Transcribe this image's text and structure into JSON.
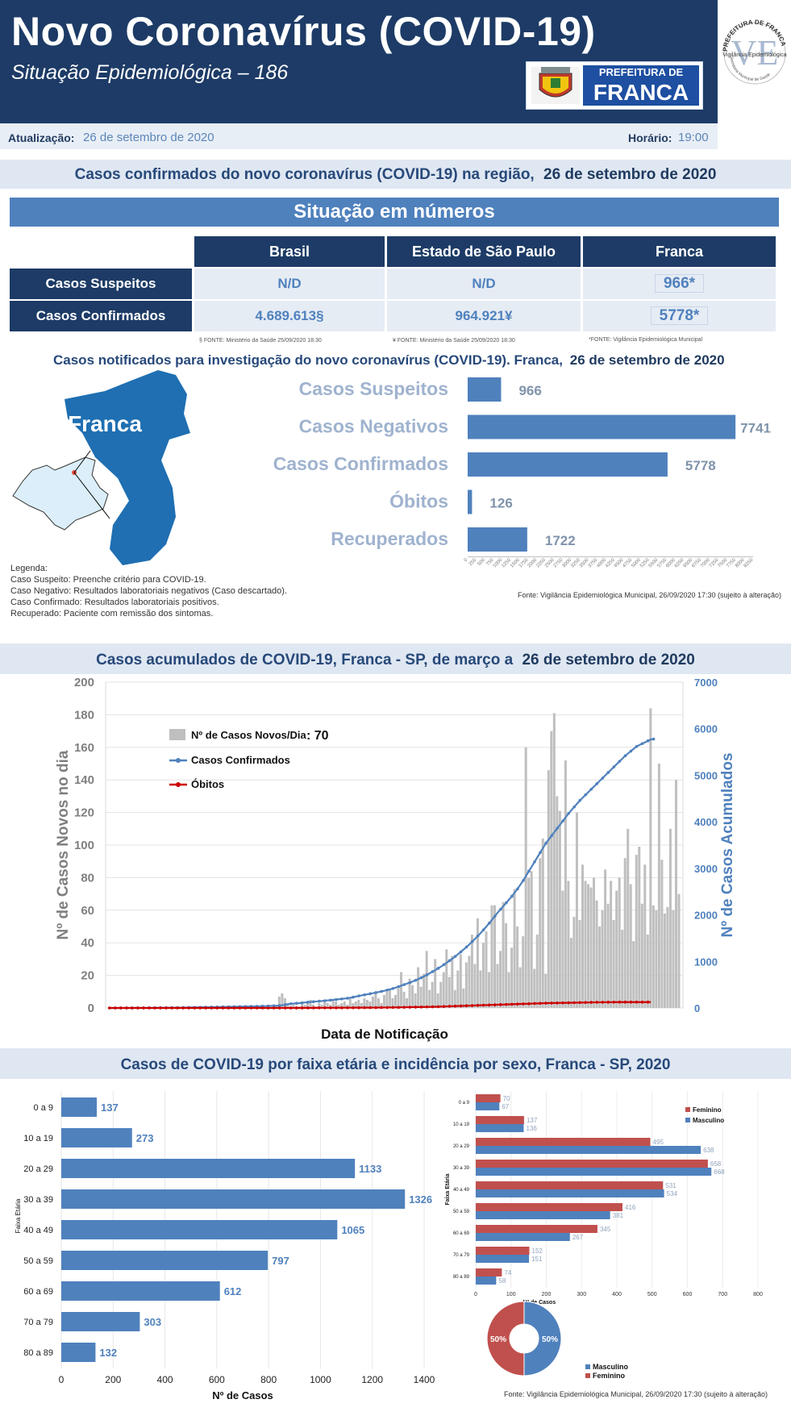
{
  "header": {
    "title": "Novo Coronavírus (COVID-19)",
    "subtitle": "Situação Epidemiológica – 186",
    "prefeitura_line1": "PREFEITURA DE",
    "prefeitura_line2": "FRANCA",
    "seal_text_top": "PREFEITURA DE FRANCA",
    "seal_text_mid": "Vigilância Epidemiológica",
    "seal_text_bottom": "Secretaria Municipal de Saúde",
    "seal_letters": "VE"
  },
  "update": {
    "date_label": "Atualização:",
    "date_value": "26 de setembro de 2020",
    "time_label": "Horário:",
    "time_value": "19:00"
  },
  "region_title": {
    "text": "Casos confirmados do novo coronavírus (COVID-19) na região,",
    "date": "26 de setembro de 2020"
  },
  "situation": {
    "title": "Situação em números",
    "columns": [
      "Brasil",
      "Estado de São Paulo",
      "Franca"
    ],
    "rows": [
      {
        "label": "Casos Suspeitos",
        "values": [
          "N/D",
          "N/D",
          "966*"
        ]
      },
      {
        "label": "Casos Confirmados",
        "values": [
          "4.689.613§",
          "964.921¥",
          "5778*"
        ]
      }
    ],
    "footnotes": [
      "§ FONTE: Ministério da Saúde 25/09/2020 18:30",
      "¥ FONTE: Ministério da Saúde 25/09/2020 18:30",
      "*FONTE: Vigilância Epidemiológica Municipal"
    ]
  },
  "notified": {
    "title": "Casos notificados para investigação do novo coronavírus (COVID-19). Franca,",
    "date": "26 de setembro de 2020",
    "map_label": "Franca",
    "legend_title": "Legenda:",
    "legend": [
      "Caso Suspeito: Preenche critério para COVID-19.",
      "Caso Negativo: Resultados laboratoriais negativos (Caso descartado).",
      "Caso Confirmado: Resultados laboratoriais positivos.",
      "Recuperado: Paciente com remissão dos sintomas."
    ],
    "source": "Fonte: Vigilância Epidemiológica Municipal, 26/09/2020 17:30  (sujeito à alteração)"
  },
  "accum_title": {
    "text": "Casos acumulados de COVID-19, Franca - SP, de março a",
    "date": "26 de setembro de 2020"
  },
  "accum_legend": {
    "new": "Nº de Casos Novos/Dia",
    "new_value": ": 70",
    "confirmed": "Casos Confirmados",
    "deaths": "Óbitos"
  },
  "age_title": "Casos de COVID-19 por faixa etária e incidência por sexo, Franca - SP, 2020",
  "age_source": "Fonte: Vigilância Epidemiológica Municipal,  26/09/2020 17:30 (sujeito à alteração)",
  "colors": {
    "navy": "#1d3b66",
    "blue": "#4f81bd",
    "red": "#c0504d",
    "gray": "#bfbfbf"
  },
  "chart_data": [
    {
      "type": "bar",
      "orientation": "horizontal",
      "categories": [
        "Casos Suspeitos",
        "Casos Negativos",
        "Casos Confirmados",
        "Óbitos",
        "Recuperados"
      ],
      "values": [
        966,
        7741,
        5778,
        126,
        1722
      ],
      "xlim": [
        0,
        8250
      ],
      "xticks": [
        0,
        250,
        500,
        750,
        1000,
        1250,
        1500,
        1750,
        2000,
        2250,
        2500,
        2750,
        3000,
        3250,
        3500,
        3750,
        4000,
        4250,
        4500,
        4750,
        5000,
        5250,
        5500,
        5750,
        6000,
        6250,
        6500,
        6750,
        7000,
        7250,
        7500,
        7750,
        8000,
        8250
      ]
    },
    {
      "type": "bar",
      "title": "",
      "xlabel": "Data de Notificação",
      "ylabel": "Nº de Casos Novos no dia",
      "y2label": "Nº de Casos Acumulados",
      "ylim": [
        0,
        200
      ],
      "yticks": [
        0,
        20,
        40,
        60,
        80,
        100,
        120,
        140,
        160,
        180,
        200
      ],
      "y2lim": [
        0,
        7000
      ],
      "y2ticks": [
        0,
        1000,
        2000,
        3000,
        4000,
        5000,
        6000,
        7000
      ],
      "series": [
        {
          "name": "Nº de Casos Novos/Dia",
          "kind": "bar",
          "color": "#bfbfbf",
          "values": [
            0,
            0,
            0,
            0,
            0,
            0,
            0,
            0,
            0,
            0,
            0,
            0,
            0,
            0,
            0,
            0,
            0,
            0,
            0,
            0,
            0,
            0,
            0,
            0,
            0,
            0,
            0,
            0,
            0,
            0,
            0,
            0,
            0,
            0,
            0,
            0,
            0,
            0,
            0,
            0,
            1,
            0,
            0,
            0,
            0,
            0,
            0,
            1,
            0,
            0,
            0,
            0,
            0,
            0,
            2,
            0,
            0,
            0,
            0,
            1,
            7,
            9,
            6,
            3,
            1,
            2,
            1,
            1,
            4,
            2,
            4,
            5,
            2,
            1,
            3,
            2,
            4,
            3,
            2,
            5,
            4,
            2,
            3,
            4,
            2,
            6,
            3,
            4,
            5,
            3,
            6,
            5,
            4,
            7,
            9,
            6,
            3,
            8,
            10,
            12,
            6,
            8,
            12,
            22,
            10,
            6,
            18,
            14,
            9,
            25,
            13,
            21,
            35,
            11,
            16,
            30,
            9,
            16,
            22,
            36,
            19,
            32,
            11,
            23,
            33,
            12,
            28,
            32,
            45,
            27,
            55,
            23,
            40,
            47,
            22,
            63,
            63,
            27,
            35,
            65,
            52,
            22,
            37,
            73,
            50,
            25,
            44,
            160,
            80,
            84,
            24,
            45,
            92,
            104,
            21,
            146,
            170,
            181,
            130,
            121,
            72,
            152,
            78,
            43,
            56,
            120,
            54,
            88,
            78,
            76,
            74,
            80,
            66,
            50,
            60,
            85,
            64,
            78,
            54,
            72,
            80,
            48,
            92,
            110,
            76,
            41,
            94,
            99,
            64,
            88,
            45,
            184,
            63,
            60,
            150,
            91,
            58,
            62,
            110,
            60,
            140,
            70
          ]
        },
        {
          "name": "Casos Confirmados",
          "kind": "line",
          "axis": "y2",
          "color": "#4f81bd",
          "values": [
            0,
            0,
            0,
            0,
            1,
            1,
            1,
            1,
            1,
            2,
            2,
            2,
            2,
            3,
            3,
            3,
            4,
            4,
            5,
            5,
            6,
            6,
            7,
            7,
            8,
            8,
            9,
            10,
            11,
            12,
            13,
            14,
            15,
            16,
            17,
            18,
            19,
            20,
            21,
            22,
            23,
            24,
            25,
            26,
            27,
            28,
            29,
            30,
            31,
            32,
            33,
            34,
            35,
            36,
            38,
            40,
            42,
            44,
            46,
            48,
            52,
            60,
            70,
            80,
            90,
            95,
            100,
            104,
            110,
            118,
            124,
            130,
            135,
            140,
            146,
            150,
            156,
            162,
            168,
            175,
            182,
            188,
            195,
            202,
            210,
            220,
            232,
            245,
            258,
            270,
            282,
            294,
            306,
            318,
            330,
            343,
            357,
            370,
            385,
            400,
            418,
            436,
            458,
            480,
            502,
            524,
            546,
            570,
            595,
            622,
            650,
            680,
            712,
            745,
            780,
            815,
            852,
            890,
            930,
            972,
            1016,
            1060,
            1108,
            1156,
            1206,
            1258,
            1312,
            1368,
            1426,
            1486,
            1548,
            1612,
            1680,
            1750,
            1822,
            1896,
            1972,
            2050,
            2120,
            2190,
            2260,
            2330,
            2400,
            2480,
            2560,
            2650,
            2740,
            2840,
            2940,
            3040,
            3140,
            3240,
            3340,
            3440,
            3540,
            3620,
            3700,
            3780,
            3860,
            3940,
            4020,
            4100,
            4180,
            4250,
            4320,
            4390,
            4460,
            4520,
            4580,
            4640,
            4700,
            4760,
            4820,
            4880,
            4940,
            5000,
            5060,
            5120,
            5180,
            5240,
            5300,
            5360,
            5420,
            5470,
            5520,
            5570,
            5620,
            5650,
            5680,
            5710,
            5740,
            5770,
            5778
          ]
        },
        {
          "name": "Óbitos",
          "kind": "line",
          "axis": "y2",
          "color": "#cc0000",
          "values": [
            0,
            0,
            0,
            0,
            0,
            0,
            0,
            0,
            0,
            0,
            0,
            0,
            0,
            0,
            0,
            0,
            0,
            0,
            0,
            0,
            0,
            0,
            0,
            0,
            0,
            0,
            0,
            0,
            0,
            0,
            0,
            0,
            0,
            0,
            0,
            0,
            0,
            0,
            0,
            0,
            0,
            0,
            0,
            0,
            0,
            0,
            0,
            0,
            0,
            0,
            0,
            0,
            0,
            0,
            0,
            0,
            0,
            0,
            0,
            0,
            1,
            1,
            1,
            1,
            1,
            1,
            1,
            1,
            1,
            2,
            2,
            2,
            2,
            2,
            3,
            3,
            3,
            3,
            3,
            4,
            4,
            4,
            4,
            5,
            5,
            5,
            5,
            6,
            6,
            6,
            7,
            7,
            7,
            8,
            8,
            9,
            9,
            10,
            10,
            11,
            12,
            12,
            13,
            14,
            15,
            16,
            17,
            18,
            19,
            20,
            21,
            22,
            23,
            24,
            25,
            26,
            28,
            30,
            32,
            34,
            36,
            38,
            40,
            42,
            44,
            46,
            48,
            50,
            52,
            54,
            56,
            58,
            60,
            62,
            64,
            66,
            68,
            70,
            72,
            74,
            76,
            78,
            80,
            82,
            84,
            86,
            88,
            90,
            92,
            94,
            96,
            98,
            100,
            102,
            104,
            105,
            106,
            107,
            108,
            109,
            110,
            111,
            112,
            113,
            114,
            115,
            116,
            117,
            118,
            119,
            120,
            121,
            122,
            122,
            123,
            123,
            124,
            124,
            125,
            125,
            126,
            126,
            126,
            126,
            126,
            126,
            126,
            126,
            126,
            126,
            126,
            126
          ]
        }
      ]
    },
    {
      "type": "bar",
      "orientation": "horizontal",
      "xlabel": "Nº de Casos",
      "ylabel": "Faixa Etária",
      "categories": [
        "0 a 9",
        "10 a 19",
        "20 a 29",
        "30 a 39",
        "40 a 49",
        "50 a 59",
        "60  a 69",
        "70 a 79",
        "80 a 89"
      ],
      "values": [
        137,
        273,
        1133,
        1326,
        1065,
        797,
        612,
        303,
        132
      ],
      "xlim": [
        0,
        1400
      ],
      "xticks": [
        0,
        200,
        400,
        600,
        800,
        1000,
        1200,
        1400
      ]
    },
    {
      "type": "bar",
      "orientation": "horizontal",
      "xlabel": "Nº de Casos",
      "ylabel": "Faixa Etária",
      "categories": [
        "0 a 9",
        "10 a 19",
        "20 a 29",
        "30 a 39",
        "40 a 49",
        "50 a 59",
        "60  a 69",
        "70 a 79",
        "80 a 89"
      ],
      "series": [
        {
          "name": "Feminino",
          "color": "#c0504d",
          "values": [
            70,
            137,
            495,
            658,
            531,
            416,
            345,
            152,
            74
          ]
        },
        {
          "name": "Masculino",
          "color": "#4f81bd",
          "values": [
            67,
            136,
            638,
            668,
            534,
            381,
            267,
            151,
            58
          ]
        }
      ],
      "xlim": [
        0,
        800
      ],
      "xticks": [
        0,
        100,
        200,
        300,
        400,
        500,
        600,
        700,
        800
      ]
    },
    {
      "type": "pie",
      "labels": [
        "Masculino",
        "Feminino"
      ],
      "values": [
        50,
        50
      ],
      "value_labels": [
        "50%",
        "50%"
      ],
      "colors": [
        "#4f81bd",
        "#c0504d"
      ]
    }
  ]
}
